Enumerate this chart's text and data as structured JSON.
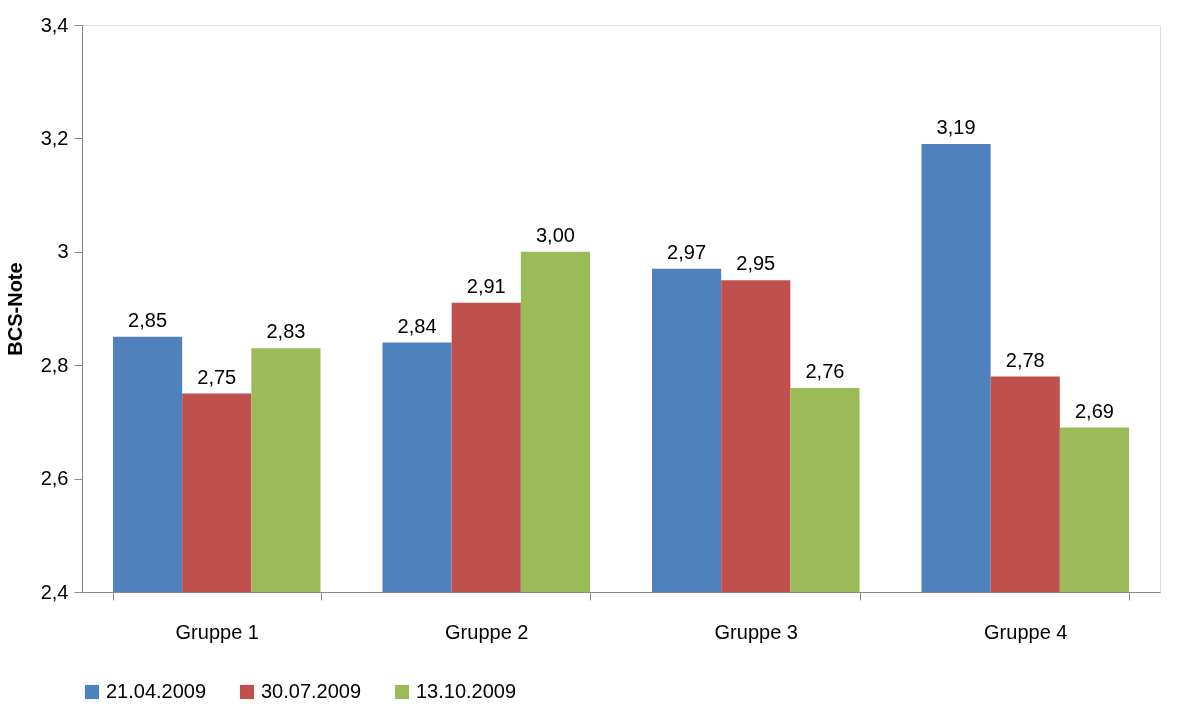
{
  "chart_data": {
    "type": "bar",
    "ylabel": "BCS-Note",
    "categories": [
      "Gruppe 1",
      "Gruppe 2",
      "Gruppe 3",
      "Gruppe 4"
    ],
    "series": [
      {
        "name": "21.04.2009",
        "color": "#4f81bd",
        "values": [
          2.85,
          2.84,
          2.97,
          3.19
        ],
        "value_labels": [
          "2,85",
          "2,84",
          "2,97",
          "3,19"
        ]
      },
      {
        "name": "30.07.2009",
        "color": "#c0504d",
        "values": [
          2.75,
          2.91,
          2.95,
          2.78
        ],
        "value_labels": [
          "2,75",
          "2,91",
          "2,95",
          "2,78"
        ]
      },
      {
        "name": "13.10.2009",
        "color": "#9bbb59",
        "values": [
          2.83,
          3.0,
          2.76,
          2.69
        ],
        "value_labels": [
          "2,83",
          "3,00",
          "2,76",
          "2,69"
        ]
      }
    ],
    "ylim": [
      2.4,
      3.4
    ],
    "yticks": [
      {
        "value": 2.4,
        "label": "2,4"
      },
      {
        "value": 2.6,
        "label": "2,6"
      },
      {
        "value": 2.8,
        "label": "2,8"
      },
      {
        "value": 3,
        "label": "3"
      },
      {
        "value": 3.2,
        "label": "3,2"
      },
      {
        "value": 3.4,
        "label": "3,4"
      }
    ],
    "grid": false,
    "legend": "bottom"
  }
}
